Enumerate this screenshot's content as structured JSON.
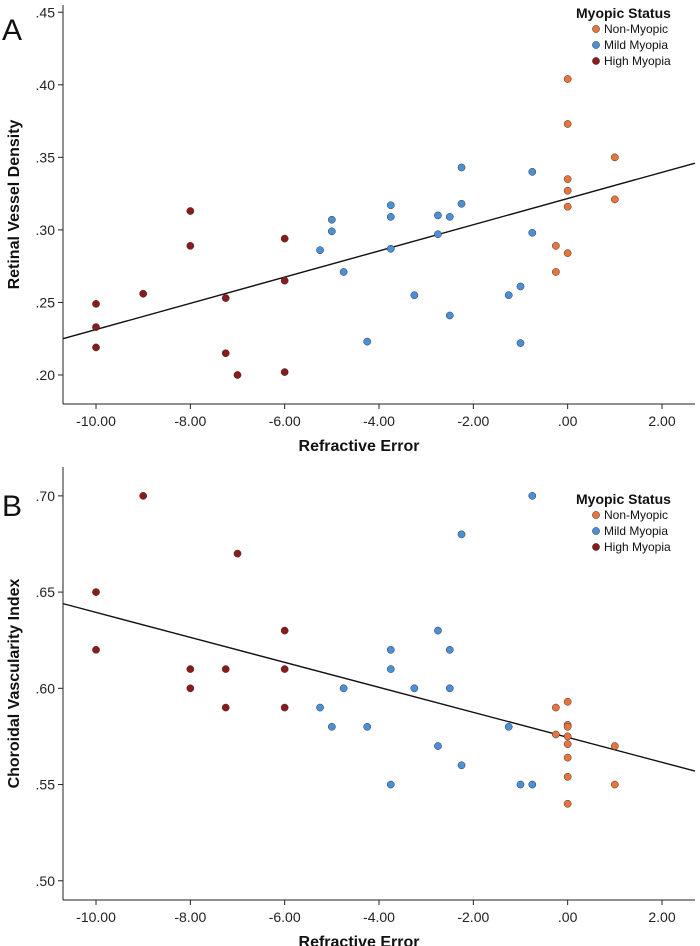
{
  "chart_data": [
    {
      "type": "scatter",
      "panel_label": "A",
      "xlabel": "Refractive Error",
      "ylabel": "Retinal Vessel Density",
      "xlim": [
        -10.7,
        2.7
      ],
      "ylim": [
        0.18,
        0.455
      ],
      "x_ticks": [
        -10,
        -8,
        -6,
        -4,
        -2,
        0,
        2
      ],
      "x_tick_labels": [
        "-10.00",
        "-8.00",
        "-6.00",
        "-4.00",
        "-2.00",
        ".00",
        "2.00"
      ],
      "y_ticks": [
        0.2,
        0.25,
        0.3,
        0.35,
        0.4,
        0.45
      ],
      "y_tick_labels": [
        ".20",
        ".25",
        ".30",
        ".35",
        ".40",
        ".45"
      ],
      "legend": {
        "title": "Myopic Status",
        "position": "top-right"
      },
      "fit_line": {
        "x": [
          -10.7,
          2.7
        ],
        "y": [
          0.225,
          0.346
        ]
      },
      "series": [
        {
          "name": "Non-Myopic",
          "color": "#E8743B",
          "points": [
            [
              0,
              0.404
            ],
            [
              0,
              0.373
            ],
            [
              1,
              0.35
            ],
            [
              0,
              0.335
            ],
            [
              0,
              0.327
            ],
            [
              0,
              0.316
            ],
            [
              1,
              0.321
            ],
            [
              -0.25,
              0.289
            ],
            [
              0,
              0.284
            ],
            [
              -0.25,
              0.271
            ]
          ]
        },
        {
          "name": "Mild Myopia",
          "color": "#4A90D9",
          "points": [
            [
              -2.25,
              0.343
            ],
            [
              -0.75,
              0.34
            ],
            [
              -3.75,
              0.317
            ],
            [
              -2.25,
              0.318
            ],
            [
              -3.75,
              0.309
            ],
            [
              -2.75,
              0.31
            ],
            [
              -2.5,
              0.309
            ],
            [
              -5.0,
              0.307
            ],
            [
              -5.0,
              0.299
            ],
            [
              -2.75,
              0.297
            ],
            [
              -0.75,
              0.298
            ],
            [
              -5.25,
              0.286
            ],
            [
              -3.75,
              0.287
            ],
            [
              -4.75,
              0.271
            ],
            [
              -1.0,
              0.261
            ],
            [
              -3.25,
              0.255
            ],
            [
              -1.25,
              0.255
            ],
            [
              -2.5,
              0.241
            ],
            [
              -4.25,
              0.223
            ],
            [
              -1.0,
              0.222
            ]
          ]
        },
        {
          "name": "High Myopia",
          "color": "#8B1A1A",
          "points": [
            [
              -8.0,
              0.313
            ],
            [
              -6.0,
              0.294
            ],
            [
              -8.0,
              0.289
            ],
            [
              -6.0,
              0.265
            ],
            [
              -9.0,
              0.256
            ],
            [
              -7.25,
              0.253
            ],
            [
              -10.0,
              0.249
            ],
            [
              -10.0,
              0.233
            ],
            [
              -10.0,
              0.219
            ],
            [
              -7.25,
              0.215
            ],
            [
              -7.0,
              0.2
            ],
            [
              -6.0,
              0.202
            ]
          ]
        }
      ]
    },
    {
      "type": "scatter",
      "panel_label": "B",
      "xlabel": "Refractive Error",
      "ylabel": "Choroidal Vascularity Index",
      "xlim": [
        -10.7,
        2.7
      ],
      "ylim": [
        0.49,
        0.715
      ],
      "x_ticks": [
        -10,
        -8,
        -6,
        -4,
        -2,
        0,
        2
      ],
      "x_tick_labels": [
        "-10.00",
        "-8.00",
        "-6.00",
        "-4.00",
        "-2.00",
        ".00",
        "2.00"
      ],
      "y_ticks": [
        0.5,
        0.55,
        0.6,
        0.65,
        0.7
      ],
      "y_tick_labels": [
        ".50",
        ".55",
        ".60",
        ".65",
        ".70"
      ],
      "legend": {
        "title": "Myopic Status",
        "position": "top-right"
      },
      "fit_line": {
        "x": [
          -10.7,
          2.7
        ],
        "y": [
          0.644,
          0.557
        ]
      },
      "series": [
        {
          "name": "Non-Myopic",
          "color": "#E8743B",
          "points": [
            [
              -0.25,
              0.59
            ],
            [
              0,
              0.593
            ],
            [
              0,
              0.581
            ],
            [
              0,
              0.58
            ],
            [
              -0.25,
              0.576
            ],
            [
              0,
              0.575
            ],
            [
              0,
              0.571
            ],
            [
              1,
              0.57
            ],
            [
              0,
              0.564
            ],
            [
              0,
              0.554
            ],
            [
              1,
              0.55
            ],
            [
              0,
              0.54
            ]
          ]
        },
        {
          "name": "Mild Myopia",
          "color": "#4A90D9",
          "points": [
            [
              -0.75,
              0.7
            ],
            [
              -2.25,
              0.68
            ],
            [
              -2.75,
              0.63
            ],
            [
              -3.75,
              0.62
            ],
            [
              -2.5,
              0.62
            ],
            [
              -3.75,
              0.61
            ],
            [
              -4.75,
              0.6
            ],
            [
              -3.25,
              0.6
            ],
            [
              -2.5,
              0.6
            ],
            [
              -5.25,
              0.59
            ],
            [
              -5.0,
              0.58
            ],
            [
              -4.25,
              0.58
            ],
            [
              -1.25,
              0.58
            ],
            [
              -2.75,
              0.57
            ],
            [
              -2.25,
              0.56
            ],
            [
              -3.75,
              0.55
            ],
            [
              -1.0,
              0.55
            ],
            [
              -0.75,
              0.55
            ]
          ]
        },
        {
          "name": "High Myopia",
          "color": "#8B1A1A",
          "points": [
            [
              -9.0,
              0.7
            ],
            [
              -7.0,
              0.67
            ],
            [
              -10.0,
              0.65
            ],
            [
              -6.0,
              0.63
            ],
            [
              -10.0,
              0.62
            ],
            [
              -8.0,
              0.61
            ],
            [
              -7.25,
              0.61
            ],
            [
              -6.0,
              0.61
            ],
            [
              -8.0,
              0.6
            ],
            [
              -7.25,
              0.59
            ],
            [
              -6.0,
              0.59
            ]
          ]
        }
      ]
    }
  ]
}
